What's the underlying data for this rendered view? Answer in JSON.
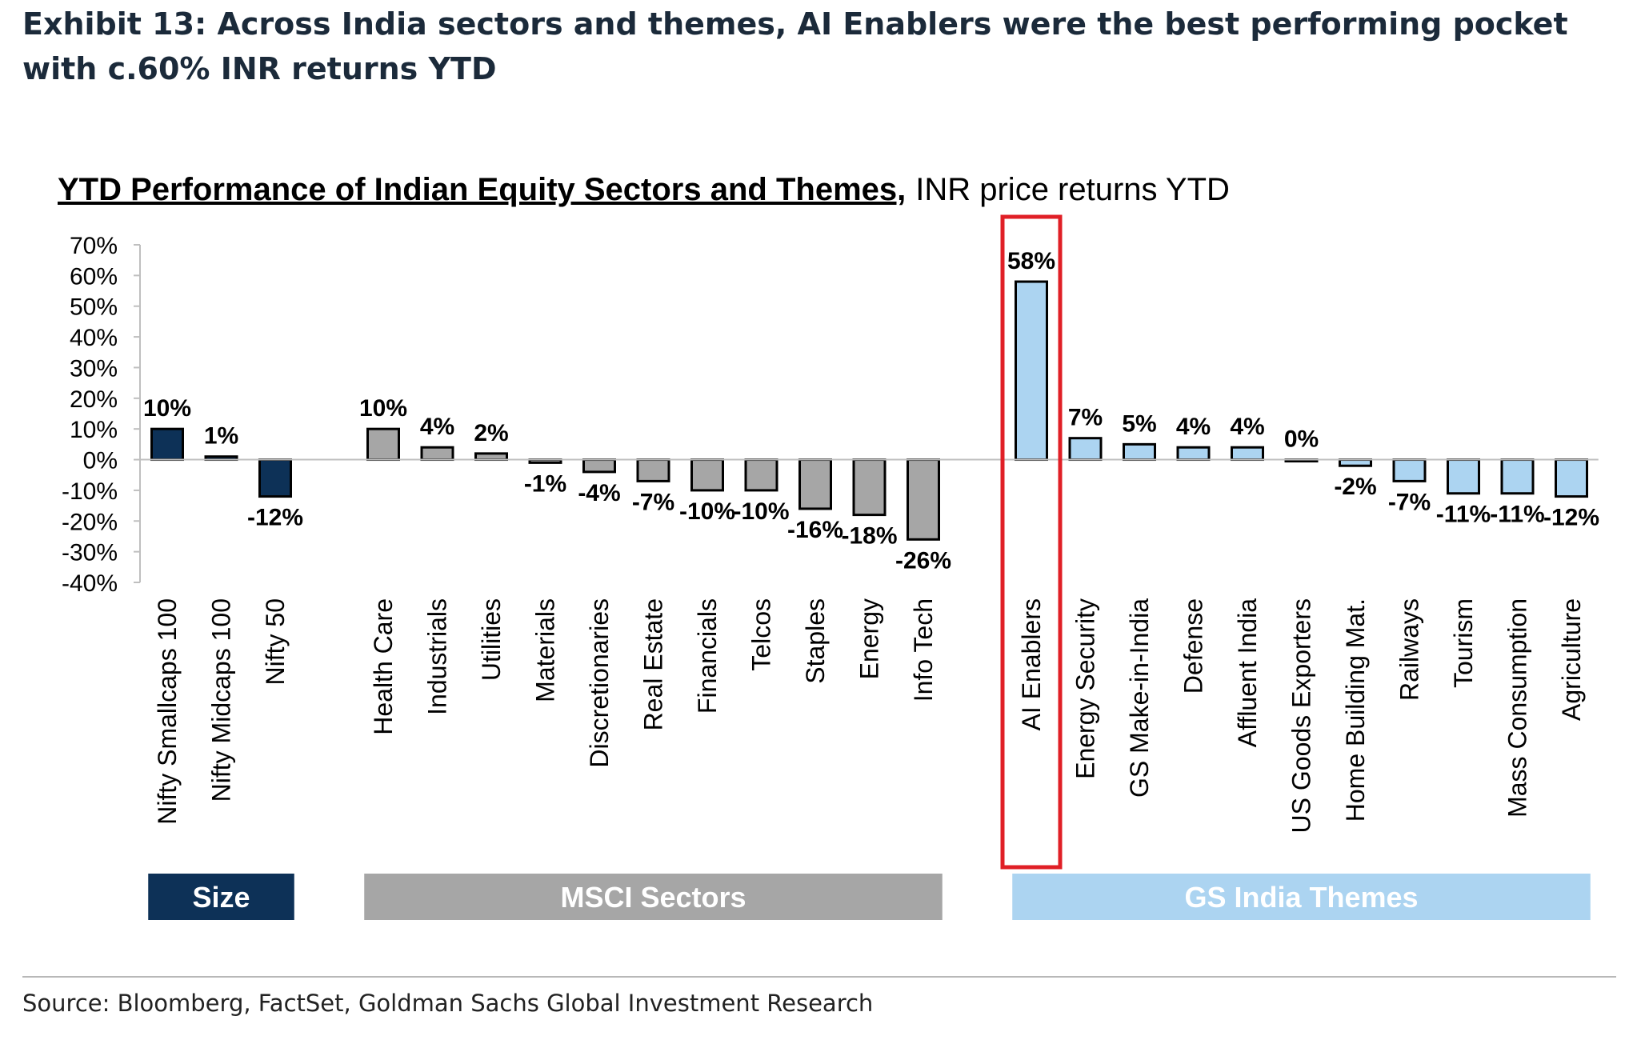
{
  "exhibit": {
    "title": "Exhibit 13: Across India sectors and themes, AI Enablers were the best performing pocket with c.60% INR returns YTD",
    "source": "Source: Bloomberg, FactSet, Goldman Sachs Global Investment Research"
  },
  "chart_data": {
    "type": "bar",
    "title": "YTD Performance of Indian Equity Sectors and Themes,",
    "subtitle": "INR price returns YTD",
    "ylim": [
      -40,
      70
    ],
    "yticks": [
      70,
      60,
      50,
      40,
      30,
      20,
      10,
      0,
      -10,
      -20,
      -30,
      -40
    ],
    "tick_suffix": "%",
    "grid": false,
    "highlight": "AI Enablers",
    "groups": [
      {
        "name": "Size",
        "color": "#0d3157",
        "text_color": "#ffffff",
        "categories": [
          "Nifty Smallcaps 100",
          "Nifty Midcaps 100",
          "Nifty 50"
        ],
        "values": [
          10,
          1,
          -12
        ],
        "labels": [
          "10%",
          "1%",
          "-12%"
        ]
      },
      {
        "name": "MSCI Sectors",
        "color": "#a6a6a6",
        "text_color": "#ffffff",
        "categories": [
          "Health Care",
          "Industrials",
          "Utilities",
          "Materials",
          "Discretionaries",
          "Real Estate",
          "Financials",
          "Telcos",
          "Staples",
          "Energy",
          "Info Tech"
        ],
        "values": [
          10,
          4,
          2,
          -1,
          -4,
          -7,
          -10,
          -10,
          -16,
          -18,
          -26
        ],
        "labels": [
          "10%",
          "4%",
          "2%",
          "-1%",
          "-4%",
          "-7%",
          "-10%",
          "-10%",
          "-16%",
          "-18%",
          "-26%"
        ]
      },
      {
        "name": "GS India Themes",
        "color": "#acd4f1",
        "text_color": "#ffffff",
        "categories": [
          "AI Enablers",
          "Energy Security",
          "GS Make-in-India",
          "Defense",
          "Affluent India",
          "US Goods Exporters",
          "Home Building Mat.",
          "Railways",
          "Tourism",
          "Mass Consumption",
          "Agriculture"
        ],
        "values": [
          58,
          7,
          5,
          4,
          4,
          0,
          -2,
          -7,
          -11,
          -11,
          -12
        ],
        "labels": [
          "58%",
          "7%",
          "5%",
          "4%",
          "4%",
          "0%",
          "-2%",
          "-7%",
          "-11%",
          "-11%",
          "-12%"
        ]
      }
    ]
  }
}
